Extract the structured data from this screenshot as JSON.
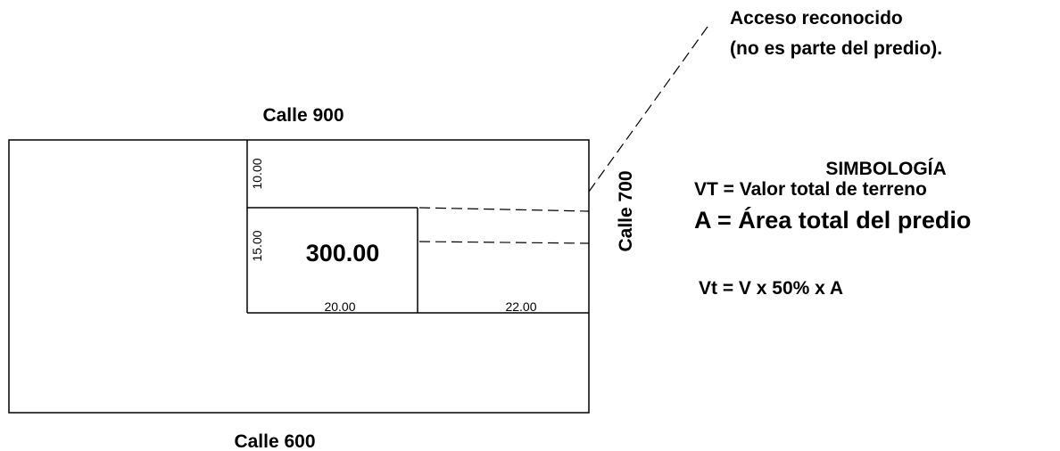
{
  "streets": {
    "north": "Calle 900",
    "south": "Calle 600",
    "east": "Calle 700"
  },
  "access_note": {
    "line1": "Acceso reconocido",
    "line2": "(no es parte del predio)."
  },
  "parcel": {
    "area": "300.00",
    "dim_top": "10.00",
    "dim_left": "15.00",
    "dim_width": "20.00",
    "dim_access": "22.00"
  },
  "legend": {
    "title": "SIMBOLOGÍA",
    "vt": "VT = Valor total de terreno",
    "a": "A  = Área total del predio",
    "formula": "Vt = V  x  50%  x  A"
  },
  "colors": {
    "ink": "#000000",
    "paper": "#ffffff"
  }
}
